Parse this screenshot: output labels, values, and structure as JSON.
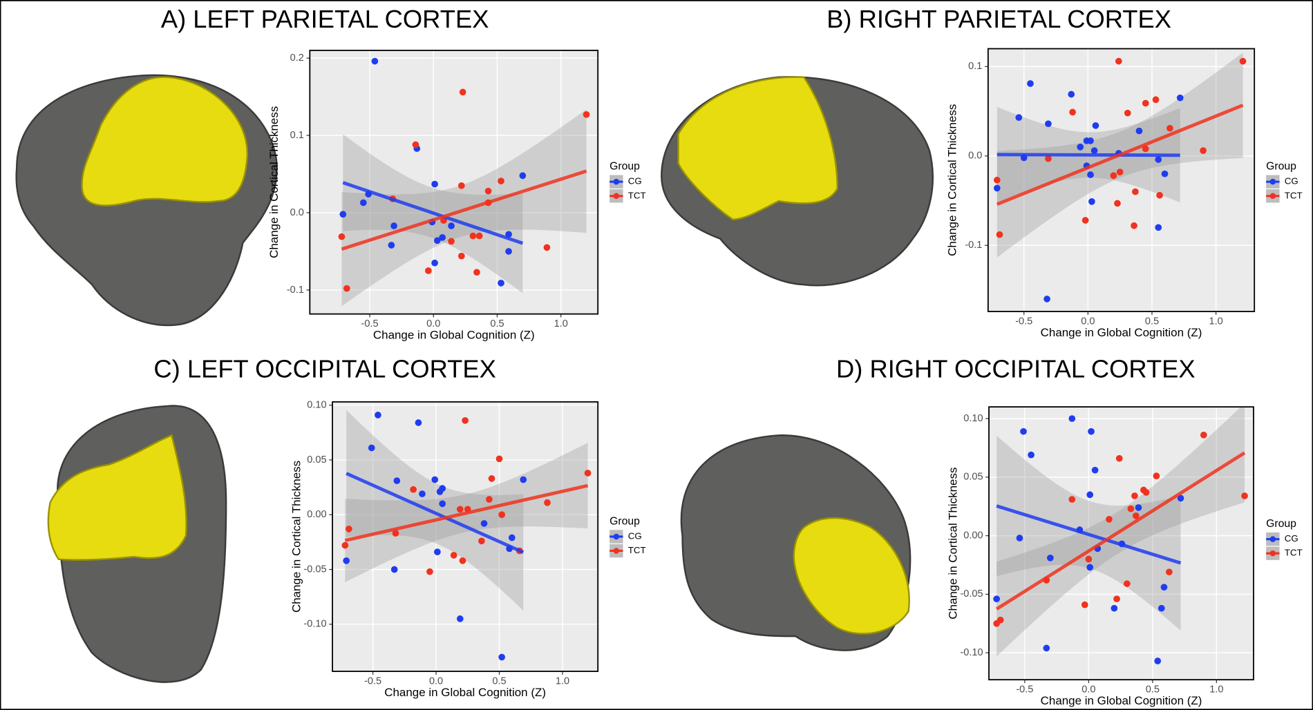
{
  "chart_data": [
    {
      "type": "scatter",
      "title": "A) LEFT PARIETAL CORTEX",
      "xlabel": "Change in Global Cognition (Z)",
      "ylabel": "Change in Cortical Thickness",
      "legend_title": "Group",
      "grid": true,
      "xlim": [
        -0.97,
        1.29
      ],
      "ylim": [
        -0.131,
        0.21
      ],
      "xticks": [
        -0.5,
        {
          "value": 0,
          "label": "0.0"
        },
        0.5,
        {
          "value": 1,
          "label": "1.0"
        }
      ],
      "yticks": [
        -0.1,
        {
          "value": 0,
          "label": "0.0"
        },
        0.1,
        0.2
      ],
      "series": [
        {
          "name": "CG",
          "color": "#1f3cf0",
          "x": [
            -0.46,
            -0.13,
            0.01,
            -0.71,
            -0.55,
            -0.51,
            -0.33,
            -0.31,
            0.01,
            0.03,
            0.07,
            -0.01,
            0.59,
            0.53,
            0.7,
            0.59,
            0.14
          ],
          "values": [
            0.196,
            0.083,
            0.037,
            -0.002,
            0.013,
            0.024,
            -0.042,
            -0.017,
            -0.065,
            -0.036,
            -0.032,
            -0.012,
            -0.05,
            -0.091,
            0.048,
            -0.028,
            -0.017
          ]
        },
        {
          "name": "TCT",
          "color": "#f0321e",
          "x": [
            -0.72,
            -0.68,
            -0.32,
            -0.14,
            0.23,
            0.22,
            -0.04,
            0.14,
            0.22,
            0.31,
            0.36,
            0.43,
            0.53,
            0.34,
            0.43,
            0.89,
            1.2,
            0.08
          ],
          "values": [
            -0.031,
            -0.098,
            0.018,
            0.088,
            0.156,
            0.035,
            -0.075,
            -0.037,
            -0.056,
            -0.03,
            -0.03,
            0.028,
            0.041,
            -0.077,
            0.013,
            -0.045,
            0.127,
            -0.01
          ]
        }
      ]
    },
    {
      "type": "scatter",
      "title": "B) RIGHT PARIETAL CORTEX",
      "xlabel": "Change in Global Cognition (Z)",
      "ylabel": "Change in Cortical Thickness",
      "legend_title": "Group",
      "grid": true,
      "xlim": [
        -0.78,
        1.3
      ],
      "ylim": [
        -0.174,
        0.12
      ],
      "xticks": [
        -0.5,
        {
          "value": 0,
          "label": "0.0"
        },
        0.5,
        {
          "value": 1,
          "label": "1.0"
        }
      ],
      "yticks": [
        -0.1,
        {
          "value": 0,
          "label": "0.0"
        },
        0.1
      ],
      "series": [
        {
          "name": "CG",
          "color": "#1f3cf0",
          "x": [
            -0.71,
            -0.54,
            -0.45,
            -0.5,
            -0.31,
            -0.13,
            -0.32,
            -0.06,
            -0.01,
            0.02,
            0.06,
            -0.01,
            0.02,
            0.03,
            0.05,
            0.24,
            0.4,
            0.6,
            0.55,
            0.72,
            0.55
          ],
          "values": [
            -0.036,
            0.043,
            0.081,
            -0.002,
            0.036,
            0.069,
            -0.16,
            0.01,
            0.017,
            0.017,
            0.034,
            -0.011,
            -0.021,
            -0.051,
            0.006,
            0.003,
            0.028,
            -0.02,
            -0.08,
            0.065,
            -0.004
          ]
        },
        {
          "name": "TCT",
          "color": "#f0321e",
          "x": [
            -0.71,
            -0.69,
            -0.31,
            -0.12,
            -0.02,
            0.24,
            0.31,
            0.45,
            0.53,
            0.37,
            0.36,
            0.23,
            0.25,
            0.2,
            0.45,
            0.56,
            0.64,
            0.9,
            1.21
          ],
          "values": [
            -0.027,
            -0.088,
            -0.003,
            0.049,
            -0.072,
            0.106,
            0.048,
            0.059,
            0.063,
            -0.04,
            -0.078,
            -0.053,
            -0.018,
            -0.022,
            0.008,
            -0.044,
            0.031,
            0.006,
            0.106
          ]
        }
      ]
    },
    {
      "type": "scatter",
      "title": "C) LEFT OCCIPITAL CORTEX",
      "xlabel": "Change in Global Cognition (Z)",
      "ylabel": "Change in Cortical Thickness",
      "legend_title": "Group",
      "grid": true,
      "xlim": [
        -0.82,
        1.28
      ],
      "ylim": [
        -0.143,
        0.103
      ],
      "xticks": [
        -0.5,
        {
          "value": 0,
          "label": "0.0"
        },
        0.5,
        {
          "value": 1,
          "label": "1.0"
        }
      ],
      "yticks": [
        {
          "value": -0.1,
          "label": "-0.10"
        },
        -0.05,
        {
          "value": 0,
          "label": "0.00"
        },
        0.05,
        {
          "value": 0.1,
          "label": "0.10"
        }
      ],
      "series": [
        {
          "name": "CG",
          "color": "#1f3cf0",
          "x": [
            -0.71,
            -0.51,
            -0.46,
            -0.31,
            -0.33,
            -0.14,
            -0.11,
            -0.01,
            0.03,
            0.05,
            0.01,
            0.19,
            0.38,
            0.52,
            0.58,
            0.69,
            0.6,
            0.05
          ],
          "values": [
            -0.042,
            0.061,
            0.091,
            0.031,
            -0.05,
            0.084,
            0.019,
            0.032,
            0.021,
            0.024,
            -0.034,
            -0.095,
            -0.008,
            -0.13,
            -0.031,
            0.032,
            -0.021,
            0.01
          ]
        },
        {
          "name": "TCT",
          "color": "#f0321e",
          "x": [
            -0.72,
            -0.69,
            -0.32,
            -0.18,
            -0.05,
            0.23,
            0.14,
            0.21,
            0.36,
            0.42,
            0.44,
            0.5,
            0.52,
            0.66,
            0.88,
            1.2,
            0.19,
            0.25
          ],
          "values": [
            -0.028,
            -0.013,
            -0.017,
            0.023,
            -0.052,
            0.086,
            -0.037,
            -0.042,
            -0.024,
            0.014,
            0.033,
            0.051,
            0,
            -0.033,
            0.011,
            0.038,
            0.005,
            0.005
          ]
        }
      ]
    },
    {
      "type": "scatter",
      "title": "D) RIGHT OCCIPITAL CORTEX",
      "xlabel": "Change in Global Cognition (Z)",
      "ylabel": "Change in Cortical Thickness",
      "legend_title": "Group",
      "grid": true,
      "xlim": [
        -0.78,
        1.29
      ],
      "ylim": [
        -0.123,
        0.11
      ],
      "xticks": [
        -0.5,
        {
          "value": 0,
          "label": "0.0"
        },
        0.5,
        {
          "value": 1,
          "label": "1.0"
        }
      ],
      "yticks": [
        {
          "value": -0.1,
          "label": "-0.10"
        },
        -0.05,
        {
          "value": 0,
          "label": "0.00"
        },
        0.05,
        {
          "value": 0.1,
          "label": "0.10"
        }
      ],
      "series": [
        {
          "name": "CG",
          "color": "#1f3cf0",
          "x": [
            -0.72,
            -0.51,
            -0.45,
            -0.54,
            -0.33,
            -0.3,
            -0.13,
            0.02,
            0.05,
            0.01,
            -0.07,
            0.01,
            0.2,
            0.39,
            0.54,
            0.59,
            0.57,
            0.72,
            0.07,
            0.26
          ],
          "values": [
            -0.054,
            0.089,
            0.069,
            -0.002,
            -0.096,
            -0.019,
            0.1,
            0.089,
            0.056,
            0.035,
            0.005,
            -0.027,
            -0.062,
            0.024,
            -0.107,
            -0.044,
            -0.062,
            0.032,
            -0.011,
            -0.007
          ]
        },
        {
          "name": "TCT",
          "color": "#f0321e",
          "x": [
            -0.72,
            -0.69,
            -0.33,
            -0.13,
            -0.03,
            0.24,
            0.22,
            0.3,
            0.36,
            0.37,
            0.43,
            0.45,
            0.53,
            0.63,
            0.9,
            1.22,
            0,
            0.16,
            0.33
          ],
          "values": [
            -0.075,
            -0.072,
            -0.038,
            0.031,
            -0.059,
            0.066,
            -0.054,
            -0.041,
            0.034,
            0.017,
            0.039,
            0.037,
            0.051,
            -0.031,
            0.086,
            0.034,
            -0.02,
            0.014,
            0.023
          ]
        }
      ]
    }
  ]
}
